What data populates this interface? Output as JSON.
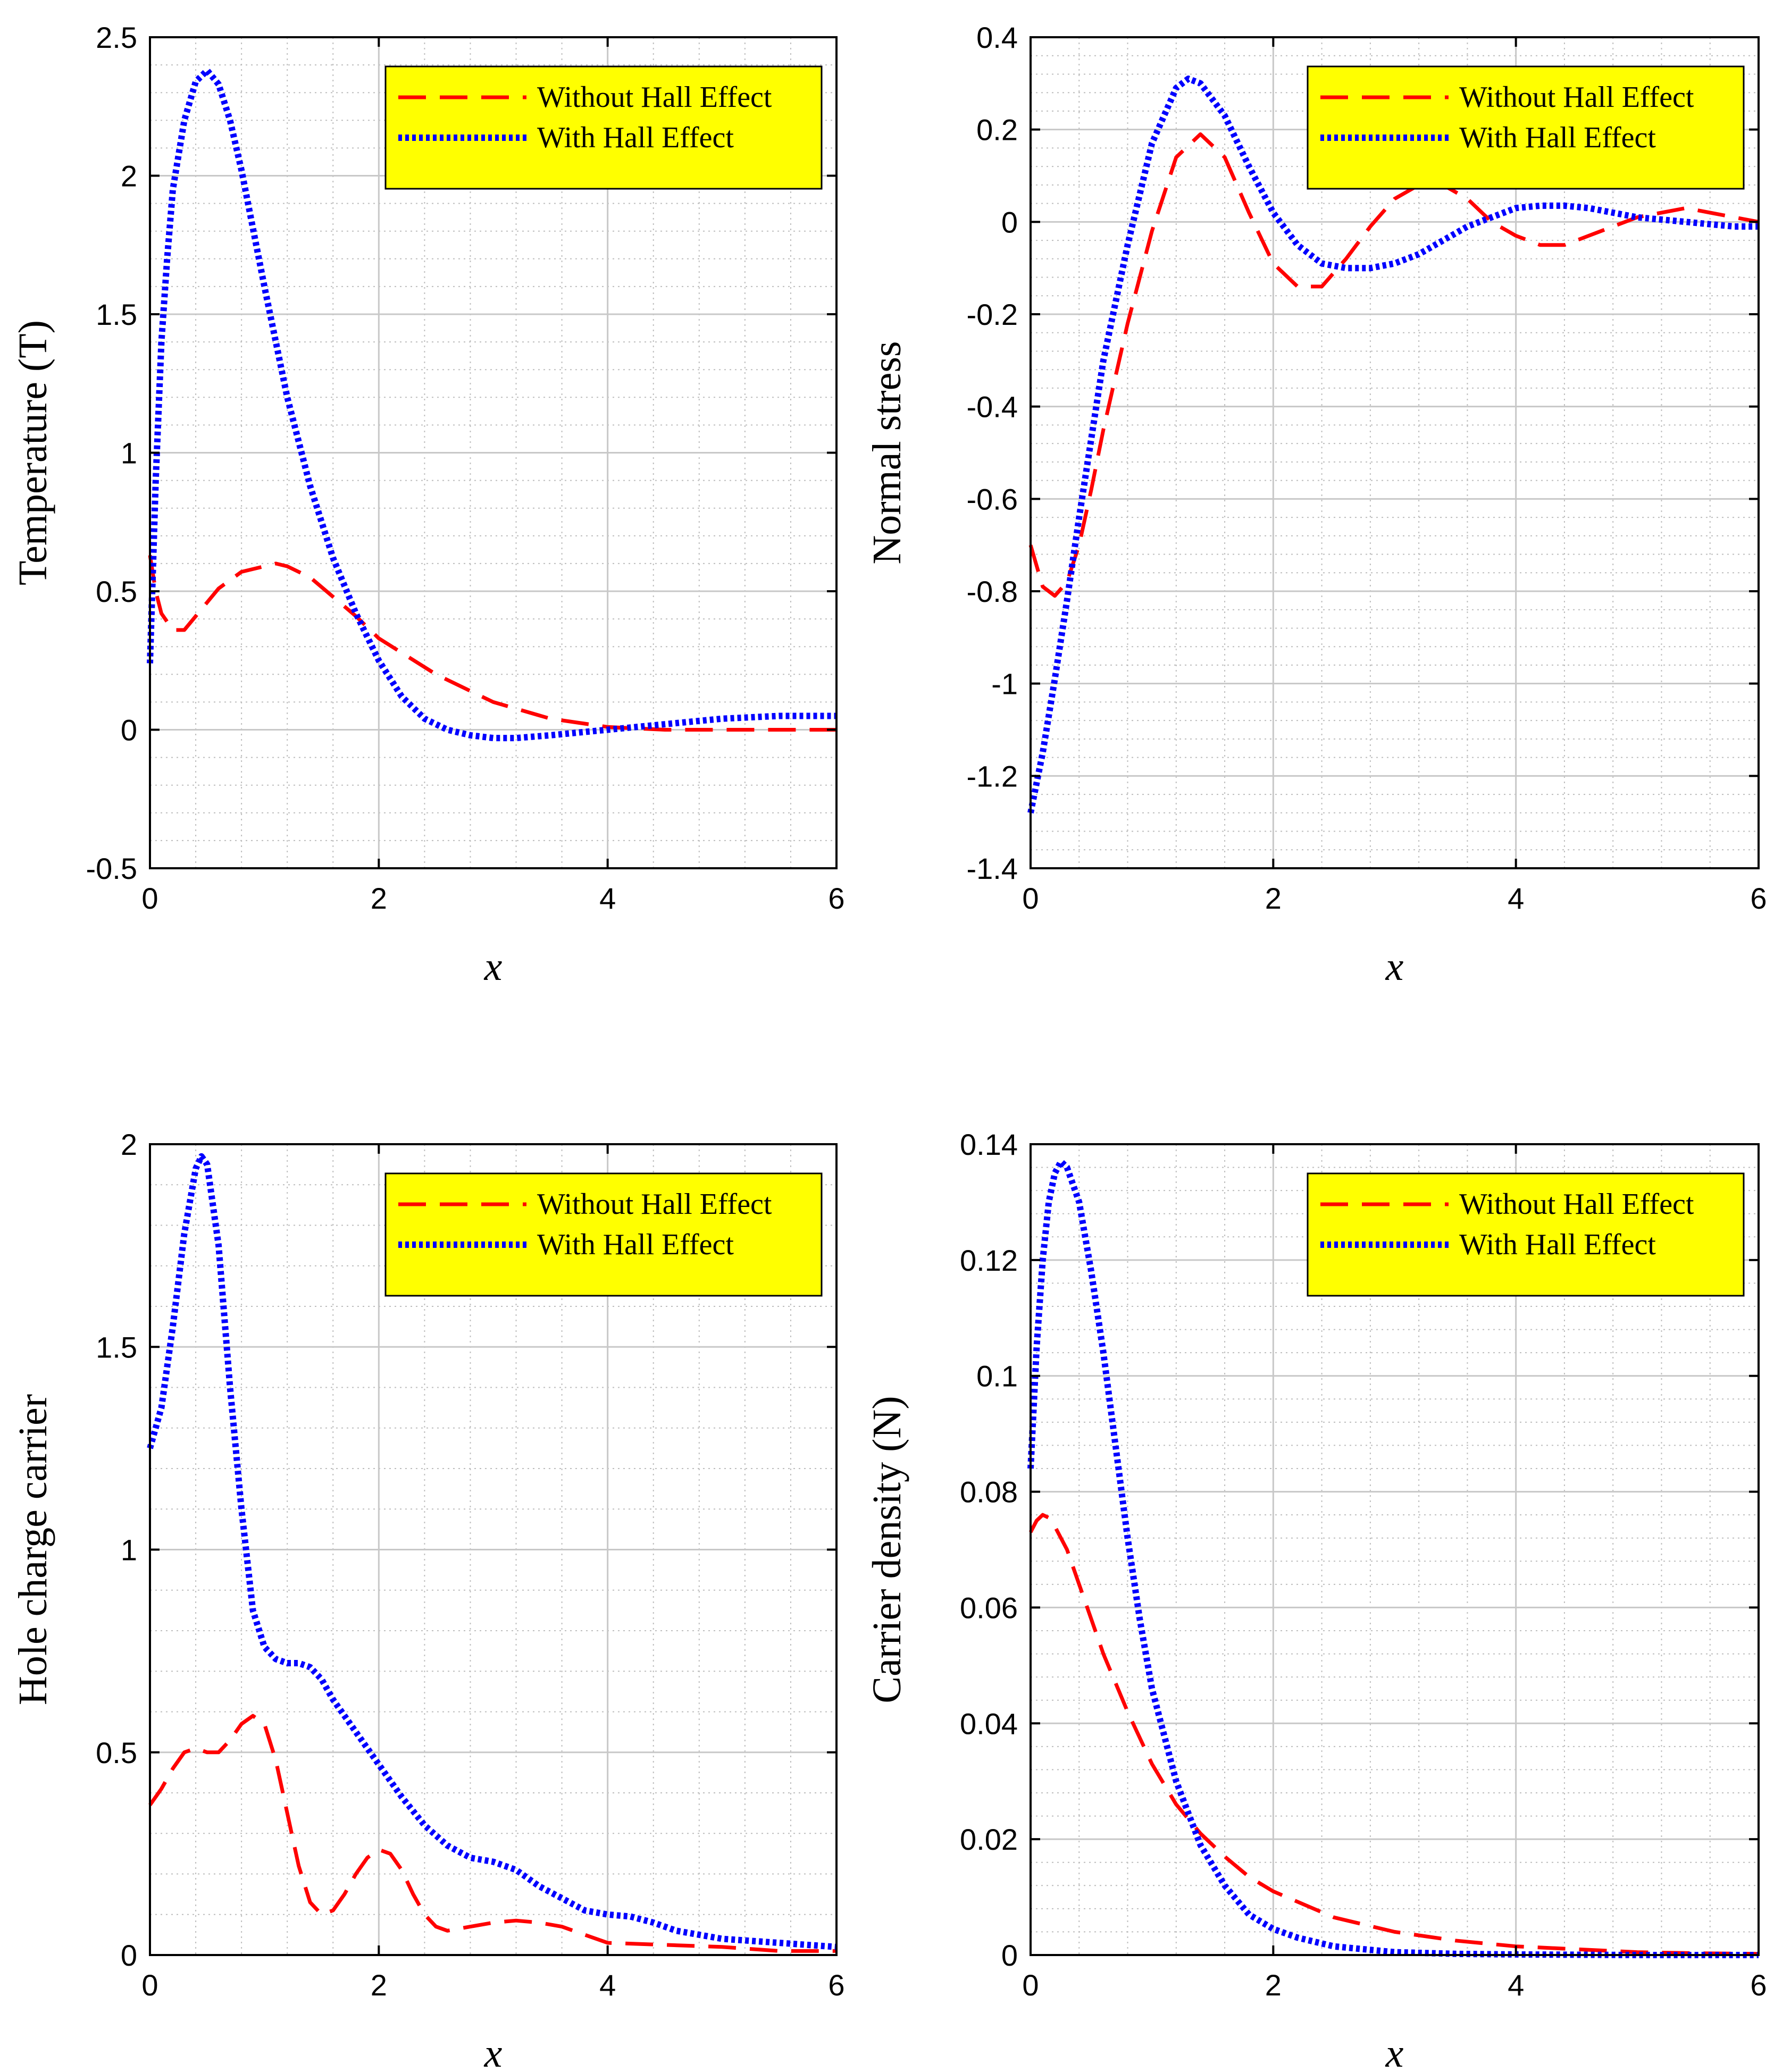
{
  "colors": {
    "background": "#ffffff",
    "axes": "#000000",
    "grid_major": "#c8c8c8",
    "grid_minor": "#bdbdbd",
    "legend_bg": "#ffff00",
    "without_hall": "#ff0000",
    "with_hall": "#0000ff"
  },
  "chart_data": [
    {
      "id": "temperature",
      "type": "line",
      "title": "",
      "xlabel": "x",
      "ylabel": "Temperature (T)",
      "xlim": [
        0,
        6
      ],
      "ylim": [
        -0.5,
        2.5
      ],
      "xticks": [
        0,
        2,
        4,
        6
      ],
      "yticks": [
        -0.5,
        0,
        0.5,
        1,
        1.5,
        2,
        2.5
      ],
      "xtick_labels": [
        "0",
        "2",
        "4",
        "6"
      ],
      "ytick_labels": [
        "-0.5",
        "0",
        "0.5",
        "1",
        "1.5",
        "2",
        "2.5"
      ],
      "grid": true,
      "legend": "top-right",
      "series": [
        {
          "name": "Without Hall Effect",
          "style": "dashed",
          "color": "#ff0000",
          "x": [
            0,
            0.05,
            0.1,
            0.2,
            0.3,
            0.4,
            0.5,
            0.6,
            0.8,
            1.0,
            1.1,
            1.2,
            1.4,
            1.6,
            1.8,
            2.0,
            2.5,
            3.0,
            3.5,
            4.0,
            4.5,
            5.0,
            5.5,
            6.0
          ],
          "y": [
            0.63,
            0.5,
            0.42,
            0.36,
            0.36,
            0.41,
            0.46,
            0.51,
            0.57,
            0.59,
            0.6,
            0.59,
            0.55,
            0.48,
            0.41,
            0.33,
            0.2,
            0.1,
            0.04,
            0.01,
            0.0,
            0.0,
            0.0,
            0.0
          ]
        },
        {
          "name": "With Hall Effect",
          "style": "dotted",
          "color": "#0000ff",
          "x": [
            0,
            0.05,
            0.1,
            0.15,
            0.2,
            0.3,
            0.4,
            0.5,
            0.6,
            0.7,
            0.8,
            1.0,
            1.2,
            1.4,
            1.6,
            1.8,
            2.0,
            2.2,
            2.4,
            2.6,
            2.8,
            3.0,
            3.2,
            3.5,
            4.0,
            4.5,
            5.0,
            5.5,
            6.0
          ],
          "y": [
            0.24,
            0.9,
            1.4,
            1.7,
            1.95,
            2.2,
            2.34,
            2.38,
            2.33,
            2.2,
            2.02,
            1.6,
            1.2,
            0.88,
            0.62,
            0.42,
            0.25,
            0.12,
            0.04,
            0.0,
            -0.02,
            -0.03,
            -0.03,
            -0.02,
            0.0,
            0.02,
            0.04,
            0.05,
            0.05
          ]
        }
      ]
    },
    {
      "id": "normal-stress",
      "type": "line",
      "title": "",
      "xlabel": "x",
      "ylabel": "Normal stress",
      "xlim": [
        0,
        6
      ],
      "ylim": [
        -1.4,
        0.4
      ],
      "xticks": [
        0,
        2,
        4,
        6
      ],
      "yticks": [
        -1.4,
        -1.2,
        -1,
        -0.8,
        -0.6,
        -0.4,
        -0.2,
        0,
        0.2,
        0.4
      ],
      "xtick_labels": [
        "0",
        "2",
        "4",
        "6"
      ],
      "ytick_labels": [
        "-1.4",
        "-1.2",
        "-1",
        "-0.8",
        "-0.6",
        "-0.4",
        "-0.2",
        "0",
        "0.2",
        "0.4"
      ],
      "grid": true,
      "legend": "top-right",
      "series": [
        {
          "name": "Without Hall Effect",
          "style": "dashed",
          "color": "#ff0000",
          "x": [
            0,
            0.1,
            0.2,
            0.3,
            0.4,
            0.5,
            0.6,
            0.8,
            1.0,
            1.2,
            1.4,
            1.6,
            1.8,
            2.0,
            2.2,
            2.4,
            2.6,
            2.8,
            3.0,
            3.2,
            3.4,
            3.6,
            3.8,
            4.0,
            4.2,
            4.4,
            4.6,
            4.8,
            5.0,
            5.2,
            5.4,
            5.6,
            5.8,
            6.0
          ],
          "y": [
            -0.7,
            -0.79,
            -0.81,
            -0.78,
            -0.7,
            -0.58,
            -0.45,
            -0.22,
            -0.02,
            0.14,
            0.19,
            0.14,
            0.02,
            -0.09,
            -0.14,
            -0.14,
            -0.08,
            -0.01,
            0.05,
            0.08,
            0.08,
            0.05,
            0.0,
            -0.03,
            -0.05,
            -0.05,
            -0.03,
            -0.01,
            0.01,
            0.02,
            0.03,
            0.02,
            0.01,
            0.0
          ]
        },
        {
          "name": "With Hall Effect",
          "style": "dotted",
          "color": "#0000ff",
          "x": [
            0,
            0.1,
            0.2,
            0.3,
            0.4,
            0.5,
            0.6,
            0.8,
            1.0,
            1.2,
            1.3,
            1.4,
            1.6,
            1.8,
            2.0,
            2.2,
            2.4,
            2.6,
            2.8,
            3.0,
            3.2,
            3.4,
            3.6,
            3.8,
            4.0,
            4.2,
            4.4,
            4.6,
            4.8,
            5.0,
            5.2,
            5.4,
            5.6,
            5.8,
            6.0
          ],
          "y": [
            -1.28,
            -1.15,
            -0.99,
            -0.82,
            -0.64,
            -0.47,
            -0.3,
            -0.05,
            0.17,
            0.29,
            0.31,
            0.3,
            0.23,
            0.12,
            0.02,
            -0.05,
            -0.09,
            -0.1,
            -0.1,
            -0.09,
            -0.07,
            -0.04,
            -0.01,
            0.01,
            0.03,
            0.035,
            0.035,
            0.03,
            0.02,
            0.01,
            0.005,
            0.0,
            -0.005,
            -0.01,
            -0.01
          ]
        }
      ]
    },
    {
      "id": "hole-charge-carrier",
      "type": "line",
      "title": "",
      "xlabel": "x",
      "ylabel": "Hole charge carrier",
      "xlim": [
        0,
        6
      ],
      "ylim": [
        0,
        2
      ],
      "xticks": [
        0,
        2,
        4,
        6
      ],
      "yticks": [
        0,
        0.5,
        1,
        1.5,
        2
      ],
      "xtick_labels": [
        "0",
        "2",
        "4",
        "6"
      ],
      "ytick_labels": [
        "0",
        "0.5",
        "1",
        "1.5",
        "2"
      ],
      "grid": true,
      "legend": "top-right",
      "series": [
        {
          "name": "Without Hall Effect",
          "style": "dashed",
          "color": "#ff0000",
          "x": [
            0,
            0.1,
            0.2,
            0.3,
            0.4,
            0.5,
            0.6,
            0.7,
            0.8,
            0.9,
            1.0,
            1.1,
            1.2,
            1.3,
            1.4,
            1.5,
            1.6,
            1.7,
            1.8,
            1.9,
            2.0,
            2.1,
            2.2,
            2.3,
            2.4,
            2.5,
            2.6,
            2.8,
            3.0,
            3.2,
            3.4,
            3.6,
            3.8,
            4.0,
            4.5,
            5.0,
            5.5,
            6.0
          ],
          "y": [
            0.37,
            0.41,
            0.46,
            0.5,
            0.51,
            0.5,
            0.5,
            0.53,
            0.57,
            0.59,
            0.57,
            0.48,
            0.35,
            0.22,
            0.13,
            0.1,
            0.11,
            0.15,
            0.2,
            0.24,
            0.26,
            0.25,
            0.21,
            0.15,
            0.1,
            0.07,
            0.06,
            0.07,
            0.08,
            0.085,
            0.08,
            0.07,
            0.05,
            0.03,
            0.025,
            0.02,
            0.01,
            0.01
          ]
        },
        {
          "name": "With Hall Effect",
          "style": "dotted",
          "color": "#0000ff",
          "x": [
            0,
            0.1,
            0.2,
            0.3,
            0.4,
            0.45,
            0.5,
            0.6,
            0.7,
            0.8,
            0.9,
            1.0,
            1.1,
            1.2,
            1.3,
            1.4,
            1.5,
            1.6,
            1.8,
            2.0,
            2.2,
            2.4,
            2.6,
            2.8,
            3.0,
            3.2,
            3.4,
            3.6,
            3.8,
            4.0,
            4.2,
            4.4,
            4.6,
            4.8,
            5.0,
            5.5,
            6.0
          ],
          "y": [
            1.25,
            1.35,
            1.55,
            1.78,
            1.94,
            1.97,
            1.95,
            1.75,
            1.4,
            1.1,
            0.85,
            0.76,
            0.73,
            0.72,
            0.72,
            0.71,
            0.68,
            0.63,
            0.55,
            0.47,
            0.39,
            0.32,
            0.27,
            0.24,
            0.23,
            0.21,
            0.17,
            0.14,
            0.11,
            0.1,
            0.095,
            0.08,
            0.06,
            0.05,
            0.04,
            0.03,
            0.02
          ]
        }
      ]
    },
    {
      "id": "carrier-density",
      "type": "line",
      "title": "",
      "xlabel": "x",
      "ylabel": "Carrier density (N)",
      "xlim": [
        0,
        6
      ],
      "ylim": [
        0,
        0.14
      ],
      "xticks": [
        0,
        2,
        4,
        6
      ],
      "yticks": [
        0,
        0.02,
        0.04,
        0.06,
        0.08,
        0.1,
        0.12,
        0.14
      ],
      "xtick_labels": [
        "0",
        "2",
        "4",
        "6"
      ],
      "ytick_labels": [
        "0",
        "0.02",
        "0.04",
        "0.06",
        "0.08",
        "0.1",
        "0.12",
        "0.14"
      ],
      "grid": true,
      "legend": "top-right",
      "series": [
        {
          "name": "Without Hall Effect",
          "style": "dashed",
          "color": "#ff0000",
          "x": [
            0,
            0.05,
            0.1,
            0.15,
            0.2,
            0.3,
            0.4,
            0.5,
            0.6,
            0.8,
            1.0,
            1.2,
            1.4,
            1.6,
            1.8,
            2.0,
            2.5,
            3.0,
            3.5,
            4.0,
            4.5,
            5.0,
            5.5,
            6.0
          ],
          "y": [
            0.073,
            0.075,
            0.076,
            0.0755,
            0.074,
            0.07,
            0.064,
            0.058,
            0.052,
            0.042,
            0.033,
            0.026,
            0.021,
            0.017,
            0.0135,
            0.011,
            0.0065,
            0.004,
            0.0025,
            0.0015,
            0.001,
            0.0005,
            0.0003,
            0.0002
          ]
        },
        {
          "name": "With Hall Effect",
          "style": "dotted",
          "color": "#0000ff",
          "x": [
            0,
            0.05,
            0.1,
            0.15,
            0.2,
            0.25,
            0.3,
            0.4,
            0.5,
            0.6,
            0.7,
            0.8,
            0.9,
            1.0,
            1.2,
            1.4,
            1.6,
            1.8,
            2.0,
            2.2,
            2.5,
            3.0,
            3.5,
            4.0,
            5.0,
            6.0
          ],
          "y": [
            0.084,
            0.105,
            0.12,
            0.13,
            0.135,
            0.137,
            0.136,
            0.13,
            0.118,
            0.104,
            0.088,
            0.072,
            0.058,
            0.046,
            0.03,
            0.019,
            0.012,
            0.007,
            0.0045,
            0.003,
            0.0015,
            0.0005,
            0.0002,
            0.0001,
            0.0,
            0.0
          ]
        }
      ]
    }
  ]
}
